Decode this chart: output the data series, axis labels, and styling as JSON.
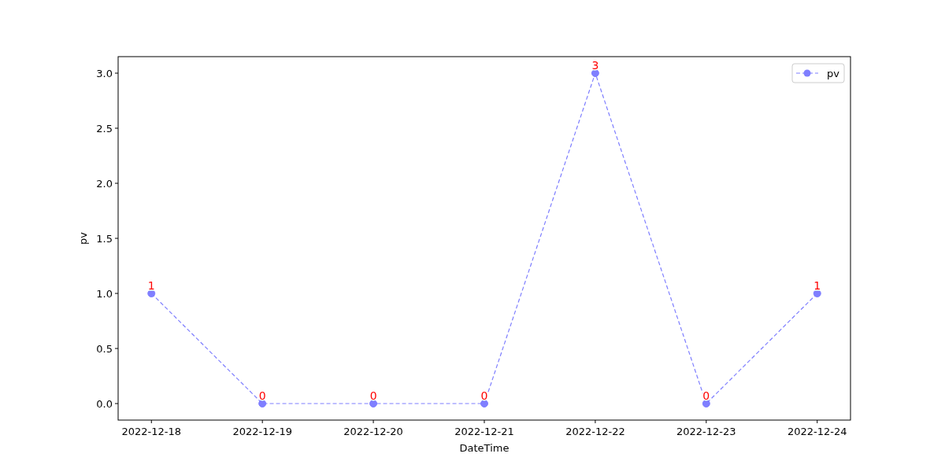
{
  "chart_data": {
    "type": "line",
    "xlabel": "DateTime",
    "ylabel": "pv",
    "categories": [
      "2022-12-18",
      "2022-12-19",
      "2022-12-20",
      "2022-12-21",
      "2022-12-22",
      "2022-12-23",
      "2022-12-24"
    ],
    "series": [
      {
        "name": "pv",
        "color": "#7f7fff",
        "values": [
          1,
          0,
          0,
          0,
          3,
          0,
          1
        ]
      }
    ],
    "ylim": [
      -0.15,
      3.15
    ],
    "yticks": [
      {
        "value": 0,
        "label": "0.0"
      },
      {
        "value": 0.5,
        "label": "0.5"
      },
      {
        "value": 1,
        "label": "1.0"
      },
      {
        "value": 1.5,
        "label": "1.5"
      },
      {
        "value": 2,
        "label": "2.0"
      },
      {
        "value": 2.5,
        "label": "2.5"
      },
      {
        "value": 3,
        "label": "3.0"
      }
    ],
    "data_labels": true,
    "marker": "circle",
    "line_style": "dashed",
    "legend": "top right",
    "grid": false
  }
}
